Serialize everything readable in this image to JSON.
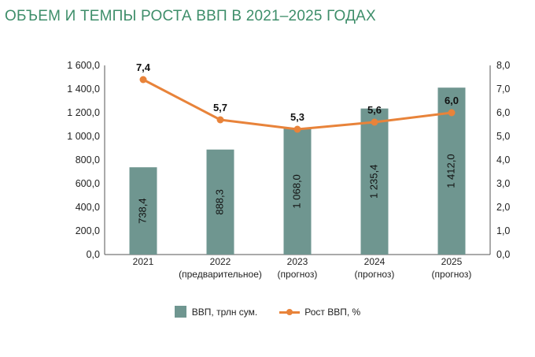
{
  "title": "ОБЪЕМ И ТЕМПЫ РОСТА ВВП В 2021–2025 ГОДАХ",
  "colors": {
    "bar": "#6f9690",
    "line": "#e8833a",
    "title": "#3e8e6a",
    "axis": "#555555"
  },
  "chart_data": {
    "type": "bar+line",
    "title": "ОБЪЕМ И ТЕМПЫ РОСТА ВВП В 2021–2025 ГОДАХ",
    "categories": [
      {
        "year": "2021",
        "note": ""
      },
      {
        "year": "2022",
        "note": "(предварительное)"
      },
      {
        "year": "2023",
        "note": "(прогноз)"
      },
      {
        "year": "2024",
        "note": "(прогноз)"
      },
      {
        "year": "2025",
        "note": "(прогноз)"
      }
    ],
    "series": [
      {
        "name": "ВВП, трлн сум.",
        "type": "bar",
        "axis": "left",
        "values": [
          738.4,
          888.3,
          1068.0,
          1235.4,
          1412.0
        ],
        "labels": [
          "738,4",
          "888,3",
          "1 068,0",
          "1 235,4",
          "1 412,0"
        ]
      },
      {
        "name": "Рост ВВП,  %",
        "type": "line",
        "axis": "right",
        "values": [
          7.4,
          5.7,
          5.3,
          5.6,
          6.0
        ],
        "labels": [
          "7,4",
          "5,7",
          "5,3",
          "5,6",
          "6,0"
        ]
      }
    ],
    "y_left": {
      "range": [
        0,
        1600
      ],
      "ticks": [
        "0,0",
        "200,0",
        "400,0",
        "600,0",
        "800,0",
        "1 000,0",
        "1 200,0",
        "1 400,0",
        "1 600,0"
      ]
    },
    "y_right": {
      "range": [
        0,
        8
      ],
      "ticks": [
        "0,0",
        "1,0",
        "2,0",
        "3,0",
        "4,0",
        "5,0",
        "6,0",
        "7,0",
        "8,0"
      ]
    },
    "legend_position": "bottom"
  }
}
